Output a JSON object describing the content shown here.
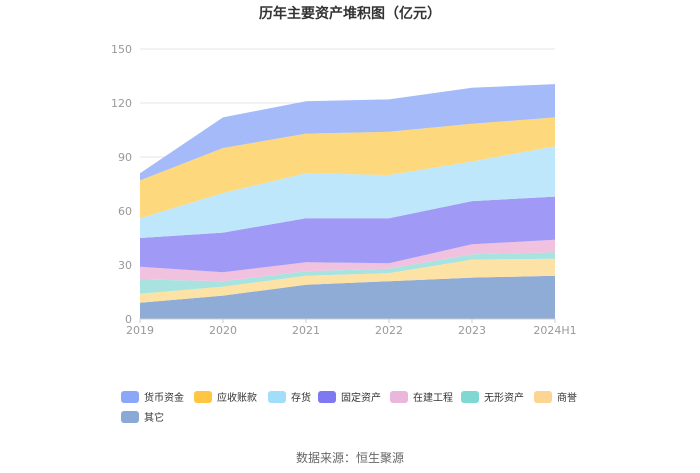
{
  "chart_data": {
    "type": "area",
    "stacked": true,
    "title": "历年主要资产堆积图（亿元）",
    "source": "数据来源：恒生聚源",
    "categories": [
      "2019",
      "2020",
      "2021",
      "2022",
      "2023",
      "2024H1"
    ],
    "ylim": [
      0,
      150
    ],
    "yticks": [
      "0",
      "30",
      "60",
      "90",
      "120",
      "150"
    ],
    "grid": true,
    "legend_position": "bottom",
    "series": [
      {
        "name": "其它",
        "color": "#8eacd6",
        "values": [
          9,
          13,
          19,
          21,
          23,
          24
        ]
      },
      {
        "name": "商誉",
        "color": "#fde2a6",
        "values": [
          5,
          5,
          5,
          4.5,
          10,
          9.5
        ]
      },
      {
        "name": "无形资产",
        "color": "#a8e3df",
        "values": [
          8,
          3,
          2.5,
          2.5,
          3,
          3.5
        ]
      },
      {
        "name": "在建工程",
        "color": "#f0c2e0",
        "values": [
          7,
          5,
          5,
          3,
          5.5,
          7
        ]
      },
      {
        "name": "固定资产",
        "color": "#a09af6",
        "values": [
          16,
          22,
          24.5,
          25,
          24,
          24
        ]
      },
      {
        "name": "存货",
        "color": "#bfe7fb",
        "values": [
          11,
          22,
          25,
          24,
          22,
          28
        ]
      },
      {
        "name": "应收账款",
        "color": "#fed87c",
        "values": [
          21,
          25,
          22,
          24,
          21,
          16
        ]
      },
      {
        "name": "货币资金",
        "color": "#a4baf9",
        "values": [
          4,
          17,
          18,
          18,
          20,
          18.5
        ]
      }
    ],
    "legend_order": [
      "货币资金",
      "应收账款",
      "存货",
      "固定资产",
      "在建工程",
      "无形资产",
      "商誉",
      "其它"
    ],
    "legend_swatch_colors": [
      "#8ba7f7",
      "#fec643",
      "#a2ddfa",
      "#7e79f3",
      "#ebb6db",
      "#7fd8d2",
      "#fcd592",
      "#8aa9d4"
    ]
  }
}
